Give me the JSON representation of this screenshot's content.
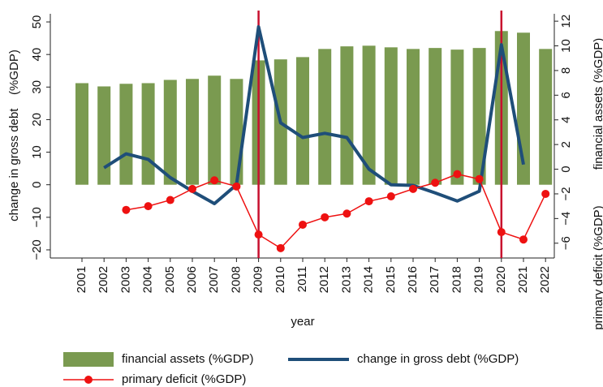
{
  "chart_data": {
    "type": "bar",
    "xlabel": "year",
    "ylabel": "change in gross debt    (%GDP)",
    "y2labels": [
      "financial assets (%GDP)",
      "primary deficit (%GDP)"
    ],
    "categories": [
      "2001",
      "2002",
      "2003",
      "2004",
      "2005",
      "2006",
      "2007",
      "2008",
      "2009",
      "2010",
      "2011",
      "2012",
      "2013",
      "2014",
      "2015",
      "2016",
      "2017",
      "2018",
      "2019",
      "2020",
      "2021",
      "2022"
    ],
    "series": [
      {
        "name": "financial assets (%GDP)",
        "type": "bar",
        "color": "#7a9a50",
        "axis": "y",
        "values": [
          31.2,
          30.2,
          31,
          31.2,
          32.2,
          32.5,
          33.5,
          32.5,
          38.2,
          38.5,
          39.2,
          41.7,
          42.5,
          42.7,
          42.2,
          41.7,
          42,
          41.5,
          42,
          47.2,
          46.7,
          41.7
        ]
      },
      {
        "name": "change in gross debt (%GDP)",
        "type": "line",
        "color": "#1f4e79",
        "axis": "y",
        "values": [
          null,
          5.2,
          9.5,
          7.8,
          2.2,
          -2,
          -5.8,
          0,
          48.5,
          19,
          14.5,
          15.8,
          14.5,
          4.8,
          0,
          -0.2,
          -2.5,
          -5,
          -2,
          43,
          6.2,
          null
        ]
      },
      {
        "name": "primary deficit (%GDP)",
        "type": "line-marker",
        "color": "#ee1111",
        "axis": "y2",
        "values": [
          null,
          null,
          -3.3,
          -3,
          -2.5,
          -1.6,
          -0.9,
          -1.4,
          -5.3,
          -6.4,
          -4.5,
          -3.9,
          -3.6,
          -2.6,
          -2.2,
          -1.6,
          -1.1,
          -0.4,
          -0.8,
          -5.1,
          -5.7,
          -2.0
        ]
      }
    ],
    "reference_lines": [
      {
        "x": "2009",
        "color": "#c8102e"
      },
      {
        "x": "2020",
        "color": "#c8102e"
      }
    ],
    "ylim": [
      -22.5,
      52.5
    ],
    "yticks": [
      {
        "value": -20,
        "label": "−20"
      },
      {
        "value": -10,
        "label": "−10"
      },
      0,
      10,
      20,
      30,
      40,
      50
    ],
    "y2lim": [
      -7.2,
      12.6
    ],
    "y2ticks": [
      {
        "value": -6,
        "label": "−6"
      },
      {
        "value": -4,
        "label": "−4"
      },
      {
        "value": -2,
        "label": "−2"
      },
      0,
      2,
      4,
      6,
      8,
      10,
      12
    ],
    "legend": "bottom"
  }
}
